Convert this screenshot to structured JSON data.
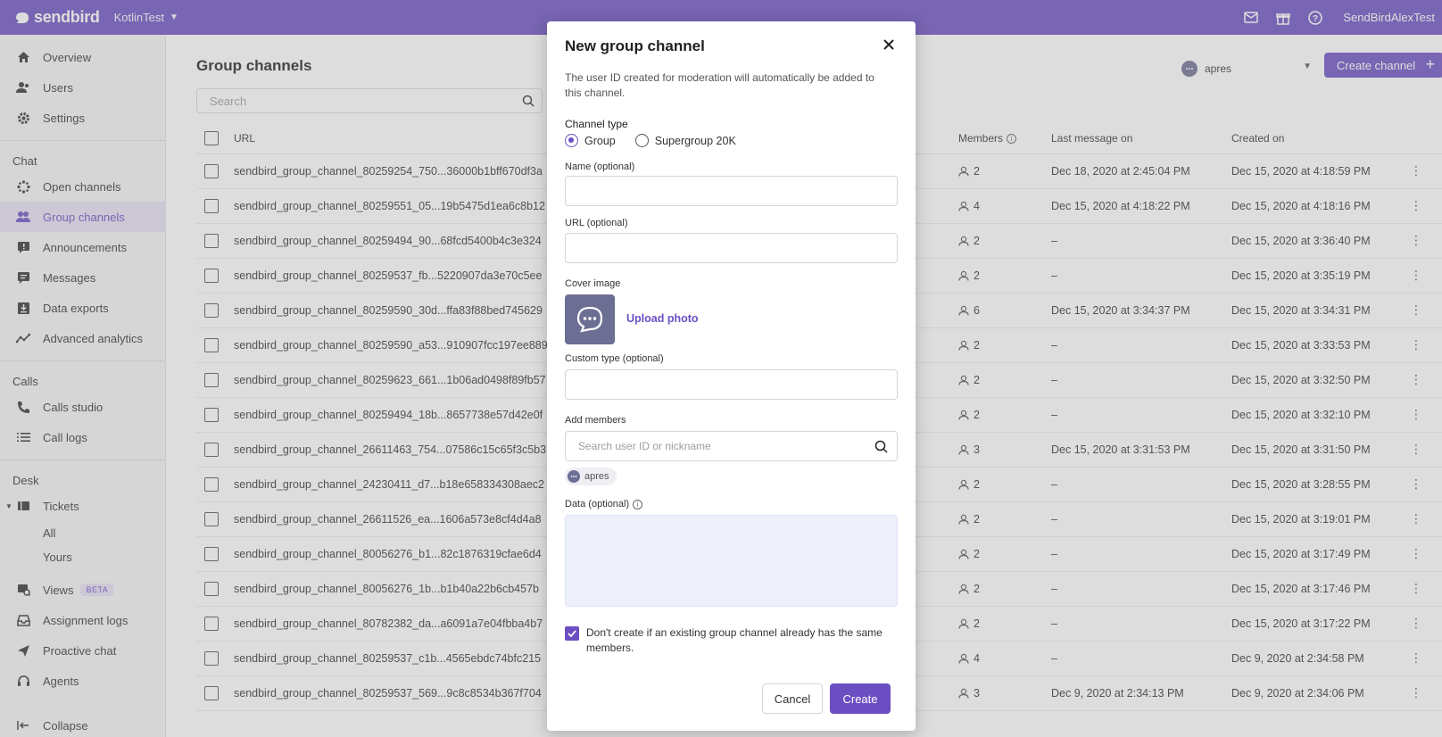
{
  "topbar": {
    "logo_text": "sendbird",
    "app_name": "KotlinTest",
    "user_name": "SendBirdAlexTest",
    "icons": [
      "mail-icon",
      "gift-icon",
      "help-icon"
    ]
  },
  "sidebar": {
    "main_items": [
      {
        "label": "Overview",
        "icon": "home-icon"
      },
      {
        "label": "Users",
        "icon": "users-icon"
      },
      {
        "label": "Settings",
        "icon": "gear-icon"
      }
    ],
    "chat_section": "Chat",
    "chat_items": [
      {
        "label": "Open channels",
        "icon": "open-channels-icon"
      },
      {
        "label": "Group channels",
        "icon": "group-channels-icon",
        "active": true
      },
      {
        "label": "Announcements",
        "icon": "announcements-icon"
      },
      {
        "label": "Messages",
        "icon": "messages-icon"
      },
      {
        "label": "Data exports",
        "icon": "data-exports-icon"
      },
      {
        "label": "Advanced analytics",
        "icon": "analytics-icon"
      }
    ],
    "calls_section": "Calls",
    "calls_items": [
      {
        "label": "Calls studio",
        "icon": "phone-icon"
      },
      {
        "label": "Call logs",
        "icon": "list-icon"
      }
    ],
    "desk_section": "Desk",
    "tickets_label": "Tickets",
    "tickets_sub": [
      "All",
      "Yours"
    ],
    "views_label": "Views",
    "beta_badge": "BETA",
    "desk_items": [
      {
        "label": "Assignment logs",
        "icon": "inbox-icon"
      },
      {
        "label": "Proactive chat",
        "icon": "send-icon"
      },
      {
        "label": "Agents",
        "icon": "headset-icon"
      }
    ],
    "collapse_label": "Collapse"
  },
  "main": {
    "title": "Group channels",
    "search_placeholder": "Search",
    "app_select": "apres",
    "create_button": "Create channel",
    "columns": {
      "url": "URL",
      "members": "Members",
      "last_message": "Last message on",
      "created": "Created on"
    },
    "rows": [
      {
        "url": "sendbird_group_channel_80259254_750...36000b1bff670df3a",
        "members": "2",
        "last": "Dec 18, 2020 at 2:45:04 PM",
        "created": "Dec 15, 2020 at 4:18:59 PM"
      },
      {
        "url": "sendbird_group_channel_80259551_05...19b5475d1ea6c8b12",
        "members": "4",
        "last": "Dec 15, 2020 at 4:18:22 PM",
        "created": "Dec 15, 2020 at 4:18:16 PM"
      },
      {
        "url": "sendbird_group_channel_80259494_90...68fcd5400b4c3e324",
        "members": "2",
        "last": "–",
        "created": "Dec 15, 2020 at 3:36:40 PM"
      },
      {
        "url": "sendbird_group_channel_80259537_fb...5220907da3e70c5ee",
        "members": "2",
        "last": "–",
        "created": "Dec 15, 2020 at 3:35:19 PM"
      },
      {
        "url": "sendbird_group_channel_80259590_30d...ffa83f88bed745629",
        "members": "6",
        "last": "Dec 15, 2020 at 3:34:37 PM",
        "created": "Dec 15, 2020 at 3:34:31 PM"
      },
      {
        "url": "sendbird_group_channel_80259590_a53...910907fcc197ee889",
        "members": "2",
        "last": "–",
        "created": "Dec 15, 2020 at 3:33:53 PM"
      },
      {
        "url": "sendbird_group_channel_80259623_661...1b06ad0498f89fb57",
        "members": "2",
        "last": "–",
        "created": "Dec 15, 2020 at 3:32:50 PM"
      },
      {
        "url": "sendbird_group_channel_80259494_18b...8657738e57d42e0f",
        "members": "2",
        "last": "–",
        "created": "Dec 15, 2020 at 3:32:10 PM"
      },
      {
        "url": "sendbird_group_channel_26611463_754...07586c15c65f3c5b3",
        "members": "3",
        "last": "Dec 15, 2020 at 3:31:53 PM",
        "created": "Dec 15, 2020 at 3:31:50 PM"
      },
      {
        "url": "sendbird_group_channel_24230411_d7...b18e658334308aec2",
        "members": "2",
        "last": "–",
        "created": "Dec 15, 2020 at 3:28:55 PM"
      },
      {
        "url": "sendbird_group_channel_26611526_ea...1606a573e8cf4d4a8",
        "members": "2",
        "last": "–",
        "created": "Dec 15, 2020 at 3:19:01 PM"
      },
      {
        "url": "sendbird_group_channel_80056276_b1...82c1876319cfae6d4",
        "members": "2",
        "last": "–",
        "created": "Dec 15, 2020 at 3:17:49 PM"
      },
      {
        "url": "sendbird_group_channel_80056276_1b...b1b40a22b6cb457b",
        "members": "2",
        "last": "–",
        "created": "Dec 15, 2020 at 3:17:46 PM"
      },
      {
        "url": "sendbird_group_channel_80782382_da...a6091a7e04fbba4b7",
        "members": "2",
        "last": "–",
        "created": "Dec 15, 2020 at 3:17:22 PM"
      },
      {
        "url": "sendbird_group_channel_80259537_c1b...4565ebdc74bfc215",
        "members": "4",
        "last": "–",
        "created": "Dec 9, 2020 at 2:34:58 PM"
      },
      {
        "url": "sendbird_group_channel_80259537_569...9c8c8534b367f704",
        "members": "3",
        "last": "Dec 9, 2020 at 2:34:13 PM",
        "created": "Dec 9, 2020 at 2:34:06 PM"
      }
    ]
  },
  "modal": {
    "title": "New group channel",
    "description": "The user ID created for moderation will automatically be added to this channel.",
    "channel_type_label": "Channel type",
    "type_group": "Group",
    "type_supergroup": "Supergroup 20K",
    "name_label": "Name (optional)",
    "url_label": "URL (optional)",
    "cover_label": "Cover image",
    "upload_label": "Upload photo",
    "custom_type_label": "Custom type (optional)",
    "add_members_label": "Add members",
    "member_search_placeholder": "Search user ID or nickname",
    "member_chip": "apres",
    "data_label": "Data (optional)",
    "dedupe_label": "Don't create if an existing group channel already has the same members.",
    "cancel": "Cancel",
    "create": "Create"
  }
}
